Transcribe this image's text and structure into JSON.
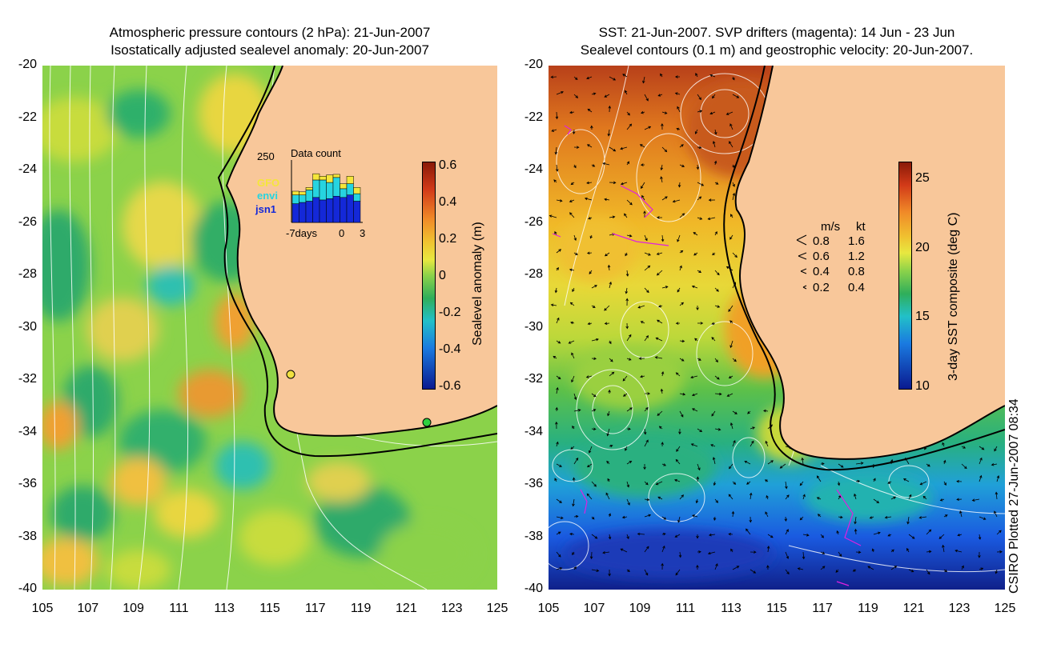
{
  "left_panel": {
    "title_line1": "Atmospheric pressure contours (2 hPa): 21-Jun-2007",
    "title_line2": "Isostatically adjusted sealevel anomaly: 20-Jun-2007",
    "colorbar_label": "Sealevel anomaly (m)",
    "colorbar_ticks": [
      "0.6",
      "0.4",
      "0.2",
      "0",
      "-0.2",
      "-0.4",
      "-0.6"
    ],
    "inset": {
      "title": "Data count",
      "ymax_label": "250",
      "x_left_label": "-7days",
      "x_zero_label": "0",
      "x_right_label": "3",
      "legend": [
        {
          "name": "GFO",
          "color": "#f5e63a"
        },
        {
          "name": "envi",
          "color": "#26d4e0"
        },
        {
          "name": "jsn1",
          "color": "#1428d8"
        }
      ],
      "bars": [
        {
          "jsn1": 0.3,
          "envi": 0.14,
          "gfo": 0.06
        },
        {
          "jsn1": 0.32,
          "envi": 0.12,
          "gfo": 0.05
        },
        {
          "jsn1": 0.34,
          "envi": 0.18,
          "gfo": 0.04
        },
        {
          "jsn1": 0.4,
          "envi": 0.28,
          "gfo": 0.1
        },
        {
          "jsn1": 0.36,
          "envi": 0.32,
          "gfo": 0.06
        },
        {
          "jsn1": 0.38,
          "envi": 0.26,
          "gfo": 0.12
        },
        {
          "jsn1": 0.42,
          "envi": 0.3,
          "gfo": 0.05
        },
        {
          "jsn1": 0.4,
          "envi": 0.14,
          "gfo": 0.08
        },
        {
          "jsn1": 0.44,
          "envi": 0.18,
          "gfo": 0.12
        },
        {
          "jsn1": 0.34,
          "envi": 0.12,
          "gfo": 0.1
        }
      ]
    }
  },
  "right_panel": {
    "title_line1": "SST: 21-Jun-2007. SVP drifters (magenta): 14 Jun - 23 Jun",
    "title_line2": "Sealevel contours (0.1 m) and geostrophic velocity: 20-Jun-2007.",
    "colorbar_label": "3-day SST composite (deg C)",
    "colorbar_ticks": [
      "25",
      "20",
      "15",
      "10"
    ],
    "velocity_legend": {
      "header_ms": "m/s",
      "header_kt": "kt",
      "rows": [
        {
          "ms": "0.8",
          "kt": "1.6"
        },
        {
          "ms": "0.6",
          "kt": "1.2"
        },
        {
          "ms": "0.4",
          "kt": "0.8"
        },
        {
          "ms": "0.2",
          "kt": "0.4"
        }
      ]
    }
  },
  "axes": {
    "y_ticks": [
      "-20",
      "-22",
      "-24",
      "-26",
      "-28",
      "-30",
      "-32",
      "-34",
      "-36",
      "-38",
      "-40"
    ],
    "x_ticks": [
      "105",
      "107",
      "109",
      "111",
      "113",
      "115",
      "117",
      "119",
      "121",
      "123",
      "125"
    ]
  },
  "credit": "CSIRO Plotted 27-Jun-2007 08:34",
  "colors": {
    "land": "#f8c79a",
    "coastline": "#000000",
    "contour": "#ffffff",
    "drifter": "#e020e0"
  }
}
